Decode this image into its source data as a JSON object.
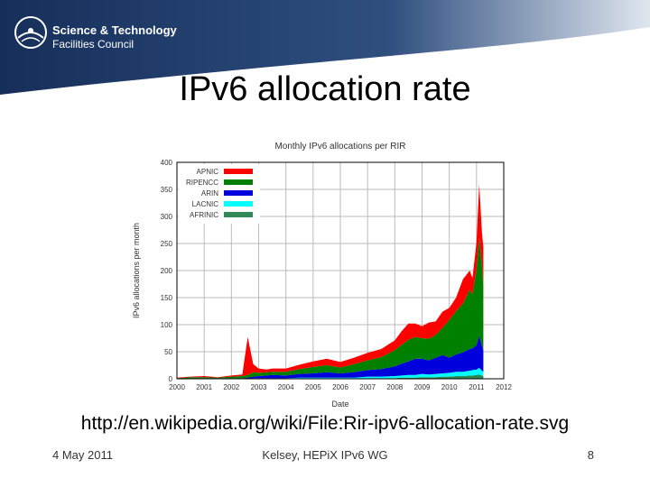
{
  "header": {
    "org_line1": "Science & Technology",
    "org_line2": "Facilities Council",
    "logo_icon": "stfc-sunrise-icon",
    "bg_color": "#1c3b6e"
  },
  "slide": {
    "title": "IPv6 allocation rate",
    "source_url": "http://en.wikipedia.org/wiki/File:Rir-ipv6-allocation-rate.svg"
  },
  "footer": {
    "date": "4 May 2011",
    "center": "Kelsey, HEPiX IPv6 WG",
    "page": "8"
  },
  "chart_data": {
    "type": "area",
    "stacked": true,
    "title": "Monthly IPv6 allocations per RIR",
    "xlabel": "Date",
    "ylabel": "IPv6 allocations per month",
    "xlim": [
      2000,
      2012
    ],
    "ylim": [
      0,
      400
    ],
    "x_ticks": [
      "2000",
      "2001",
      "2002",
      "2003",
      "2004",
      "2005",
      "2006",
      "2007",
      "2008",
      "2009",
      "2010",
      "2011",
      "2012"
    ],
    "y_ticks": [
      0,
      50,
      100,
      150,
      200,
      250,
      300,
      350,
      400
    ],
    "grid": true,
    "legend_position": "top-left",
    "x": [
      2000.0,
      2000.5,
      2001.0,
      2001.5,
      2002.0,
      2002.4,
      2002.6,
      2002.8,
      2003.0,
      2003.3,
      2003.5,
      2004.0,
      2004.5,
      2005.0,
      2005.5,
      2006.0,
      2006.5,
      2007.0,
      2007.5,
      2008.0,
      2008.25,
      2008.5,
      2008.75,
      2009.0,
      2009.25,
      2009.5,
      2009.75,
      2010.0,
      2010.25,
      2010.5,
      2010.75,
      2010.85,
      2011.0,
      2011.1,
      2011.2,
      2011.25
    ],
    "series": [
      {
        "name": "AFRINIC",
        "color": "#2e8b57",
        "values": [
          0,
          0,
          0,
          0,
          0,
          0,
          0,
          0,
          0,
          0,
          0,
          0,
          0,
          0,
          0,
          0,
          0,
          1,
          1,
          1,
          2,
          2,
          2,
          3,
          3,
          3,
          4,
          4,
          5,
          5,
          6,
          6,
          7,
          8,
          6,
          5
        ]
      },
      {
        "name": "LACNIC",
        "color": "#00ffff",
        "values": [
          0,
          0,
          0,
          0,
          0,
          0,
          0,
          1,
          1,
          1,
          1,
          1,
          2,
          2,
          2,
          2,
          2,
          3,
          3,
          4,
          4,
          5,
          5,
          6,
          5,
          6,
          6,
          7,
          8,
          8,
          9,
          10,
          10,
          12,
          9,
          8
        ]
      },
      {
        "name": "ARIN",
        "color": "#0000dd",
        "values": [
          0,
          1,
          1,
          1,
          1,
          1,
          2,
          3,
          4,
          5,
          6,
          5,
          7,
          8,
          10,
          8,
          10,
          12,
          14,
          18,
          22,
          25,
          30,
          28,
          26,
          30,
          34,
          28,
          32,
          36,
          40,
          40,
          45,
          60,
          45,
          40
        ]
      },
      {
        "name": "RIPENCC",
        "color": "#008000",
        "values": [
          1,
          2,
          2,
          1,
          3,
          4,
          5,
          8,
          6,
          6,
          6,
          7,
          9,
          12,
          13,
          11,
          15,
          18,
          22,
          30,
          35,
          40,
          40,
          38,
          40,
          42,
          50,
          70,
          80,
          90,
          110,
          100,
          140,
          180,
          150,
          120
        ]
      },
      {
        "name": "APNIC",
        "color": "#ff0000",
        "values": [
          1,
          1,
          2,
          1,
          2,
          3,
          70,
          15,
          8,
          5,
          6,
          6,
          8,
          10,
          12,
          10,
          12,
          14,
          15,
          18,
          25,
          30,
          25,
          22,
          30,
          25,
          30,
          22,
          25,
          45,
          35,
          30,
          50,
          100,
          60,
          70
        ]
      }
    ]
  }
}
